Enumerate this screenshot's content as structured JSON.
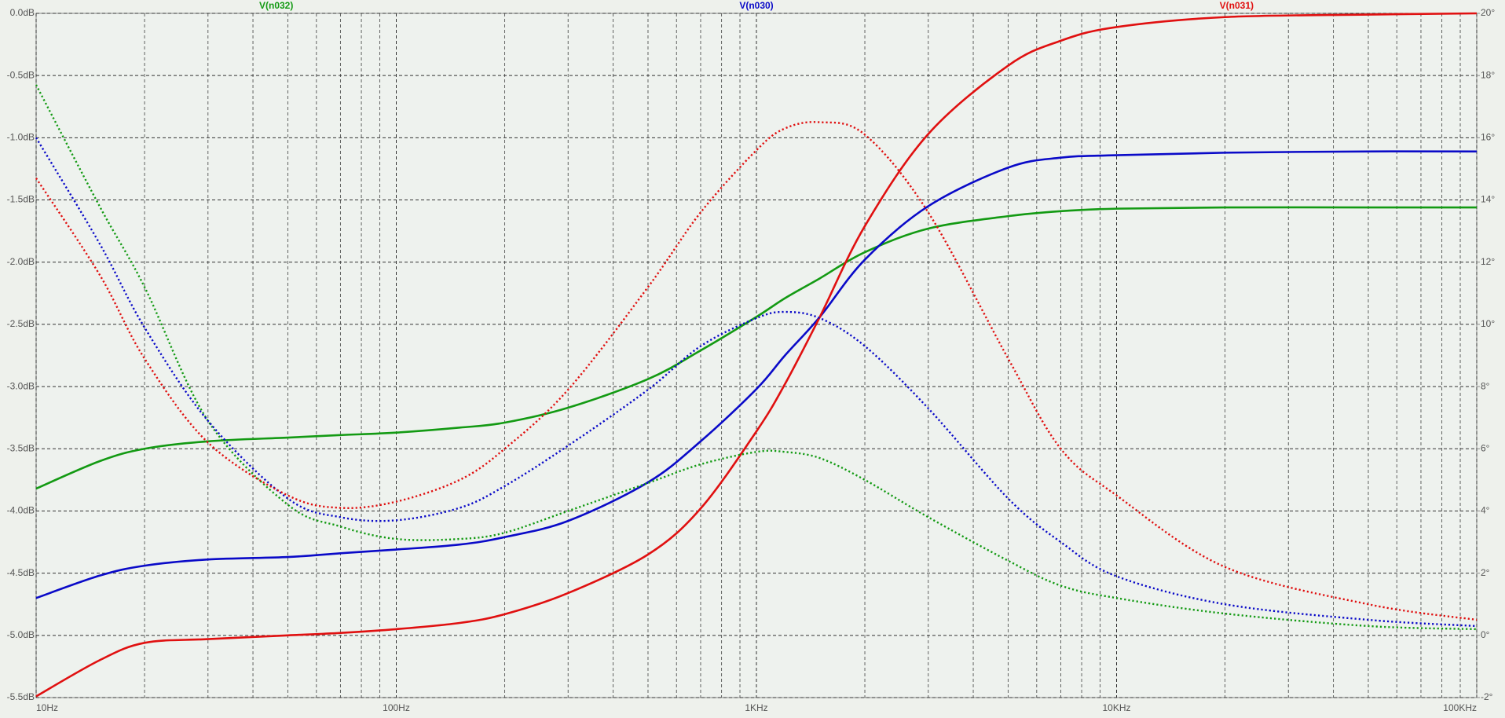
{
  "chart_data": {
    "type": "line",
    "xscale": "log",
    "grid": true,
    "xlim": [
      10,
      100000
    ],
    "xticks": [
      {
        "value": 10,
        "label": "10Hz"
      },
      {
        "value": 100,
        "label": "100Hz"
      },
      {
        "value": 1000,
        "label": "1KHz"
      },
      {
        "value": 10000,
        "label": "10KHz"
      },
      {
        "value": 100000,
        "label": "100KHz"
      }
    ],
    "ylim": [
      -5.5,
      0
    ],
    "yticks": [
      {
        "value": 0,
        "label": "0.0dB"
      },
      {
        "value": -0.5,
        "label": "-0.5dB"
      },
      {
        "value": -1,
        "label": "-1.0dB"
      },
      {
        "value": -1.5,
        "label": "-1.5dB"
      },
      {
        "value": -2,
        "label": "-2.0dB"
      },
      {
        "value": -2.5,
        "label": "-2.5dB"
      },
      {
        "value": -3,
        "label": "-3.0dB"
      },
      {
        "value": -3.5,
        "label": "-3.5dB"
      },
      {
        "value": -4,
        "label": "-4.0dB"
      },
      {
        "value": -4.5,
        "label": "-4.5dB"
      },
      {
        "value": -5,
        "label": "-5.0dB"
      },
      {
        "value": -5.5,
        "label": "-5.5dB"
      }
    ],
    "y2lim": [
      -2,
      20
    ],
    "y2ticks": [
      {
        "value": 20,
        "label": "20°"
      },
      {
        "value": 18,
        "label": "18°"
      },
      {
        "value": 16,
        "label": "16°"
      },
      {
        "value": 14,
        "label": "14°"
      },
      {
        "value": 12,
        "label": "12°"
      },
      {
        "value": 10,
        "label": "10°"
      },
      {
        "value": 8,
        "label": "8°"
      },
      {
        "value": 6,
        "label": "6°"
      },
      {
        "value": 4,
        "label": "4°"
      },
      {
        "value": 2,
        "label": "2°"
      },
      {
        "value": 0,
        "label": "0°"
      },
      {
        "value": -2,
        "label": "-2°"
      }
    ],
    "x": [
      10,
      15,
      20,
      30,
      50,
      70,
      100,
      150,
      200,
      300,
      500,
      700,
      1000,
      1200,
      1500,
      2000,
      3000,
      5000,
      7000,
      10000,
      20000,
      50000,
      100000
    ],
    "series": [
      {
        "name": "V(n032)",
        "color": "#139a13",
        "dash": "solid",
        "values": [
          -3.82,
          -3.6,
          -3.5,
          -3.44,
          -3.41,
          -3.39,
          -3.37,
          -3.33,
          -3.29,
          -3.17,
          -2.94,
          -2.71,
          -2.44,
          -2.29,
          -2.13,
          -1.92,
          -1.73,
          -1.63,
          -1.59,
          -1.57,
          -1.56,
          -1.56,
          -1.56
        ]
      },
      {
        "name": "V(n030)",
        "color": "#0a0ac8",
        "dash": "solid",
        "values": [
          -4.7,
          -4.52,
          -4.44,
          -4.39,
          -4.37,
          -4.34,
          -4.31,
          -4.27,
          -4.21,
          -4.08,
          -3.77,
          -3.44,
          -3.02,
          -2.75,
          -2.44,
          -1.98,
          -1.55,
          -1.24,
          -1.16,
          -1.14,
          -1.12,
          -1.11,
          -1.11
        ]
      },
      {
        "name": "V(n031)",
        "color": "#e01010",
        "dash": "solid",
        "values": [
          -5.49,
          -5.2,
          -5.06,
          -5.03,
          -5.0,
          -4.98,
          -4.95,
          -4.9,
          -4.83,
          -4.66,
          -4.35,
          -3.98,
          -3.36,
          -2.98,
          -2.44,
          -1.71,
          -0.97,
          -0.42,
          -0.22,
          -0.11,
          -0.03,
          -0.01,
          0
        ]
      },
      {
        "color": "#139a13",
        "dash": "dotted",
        "axis": "y2",
        "values": [
          17.7,
          13.8,
          11.2,
          6.9,
          4.2,
          3.5,
          3.1,
          3.1,
          3.3,
          4.0,
          4.9,
          5.5,
          5.9,
          5.9,
          5.7,
          5.0,
          3.8,
          2.4,
          1.6,
          1.2,
          0.7,
          0.3,
          0.2
        ]
      },
      {
        "color": "#0a0ac8",
        "dash": "dotted",
        "axis": "y2",
        "values": [
          16.0,
          12.6,
          9.9,
          6.9,
          4.4,
          3.8,
          3.7,
          4.1,
          4.8,
          6.1,
          7.9,
          9.3,
          10.2,
          10.4,
          10.2,
          9.3,
          7.3,
          4.4,
          3.0,
          1.9,
          1.0,
          0.5,
          0.3
        ]
      },
      {
        "color": "#e01010",
        "dash": "dotted",
        "axis": "y2",
        "values": [
          14.7,
          11.6,
          8.9,
          6.2,
          4.5,
          4.1,
          4.3,
          5.0,
          6.0,
          7.9,
          11.2,
          13.6,
          15.6,
          16.3,
          16.5,
          16.1,
          13.6,
          8.9,
          6.0,
          4.5,
          2.2,
          1.0,
          0.5
        ]
      }
    ]
  }
}
